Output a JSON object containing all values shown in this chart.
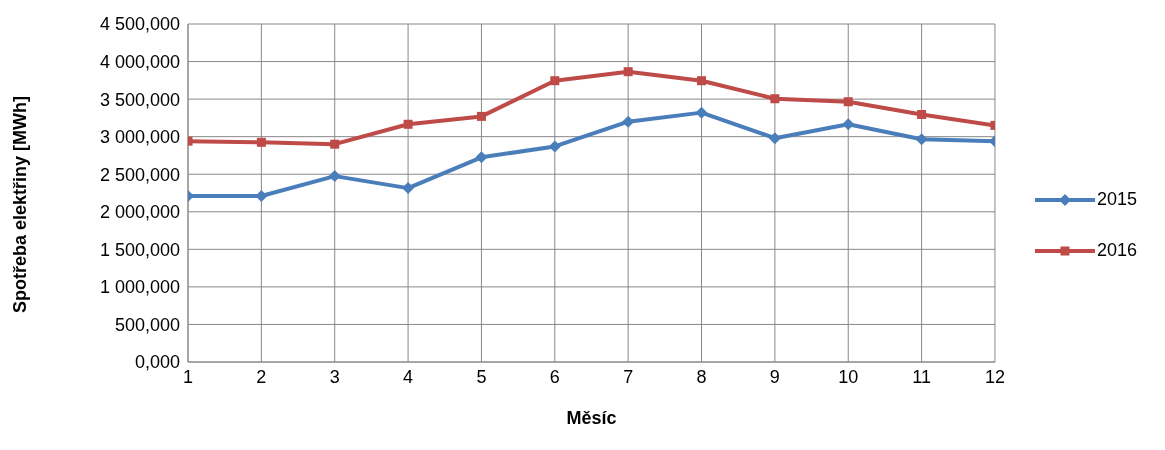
{
  "chart_data": {
    "type": "line",
    "xlabel": "Měsíc",
    "ylabel": "Spotřeba elektřiny [MWh]",
    "x": [
      1,
      2,
      3,
      4,
      5,
      6,
      7,
      8,
      9,
      10,
      11,
      12
    ],
    "series": [
      {
        "name": "2015",
        "color": "#4a7ebb",
        "marker": "diamond",
        "values": [
          2210000,
          2210000,
          2475000,
          2315000,
          2725000,
          2870000,
          3200000,
          3320000,
          2980000,
          3165000,
          2965000,
          2940000
        ]
      },
      {
        "name": "2016",
        "color": "#be4b48",
        "marker": "square",
        "values": [
          2940000,
          2925000,
          2900000,
          3165000,
          3270000,
          3745000,
          3865000,
          3745000,
          3505000,
          3465000,
          3295000,
          3150000
        ]
      }
    ],
    "xlim": [
      1,
      12
    ],
    "xticks": [
      1,
      2,
      3,
      4,
      5,
      6,
      7,
      8,
      9,
      10,
      11,
      12
    ],
    "ylim": [
      0,
      4500000
    ],
    "yticks": [
      {
        "value": 0,
        "label": "0,000"
      },
      {
        "value": 500000,
        "label": "500,000"
      },
      {
        "value": 1000000,
        "label": "1 000,000"
      },
      {
        "value": 1500000,
        "label": "1 500,000"
      },
      {
        "value": 2000000,
        "label": "2 000,000"
      },
      {
        "value": 2500000,
        "label": "2 500,000"
      },
      {
        "value": 3000000,
        "label": "3 000,000"
      },
      {
        "value": 3500000,
        "label": "3 500,000"
      },
      {
        "value": 4000000,
        "label": "4 000,000"
      },
      {
        "value": 4500000,
        "label": "4 500,000"
      }
    ],
    "grid": true,
    "legend": "right",
    "line_style": "solid"
  }
}
